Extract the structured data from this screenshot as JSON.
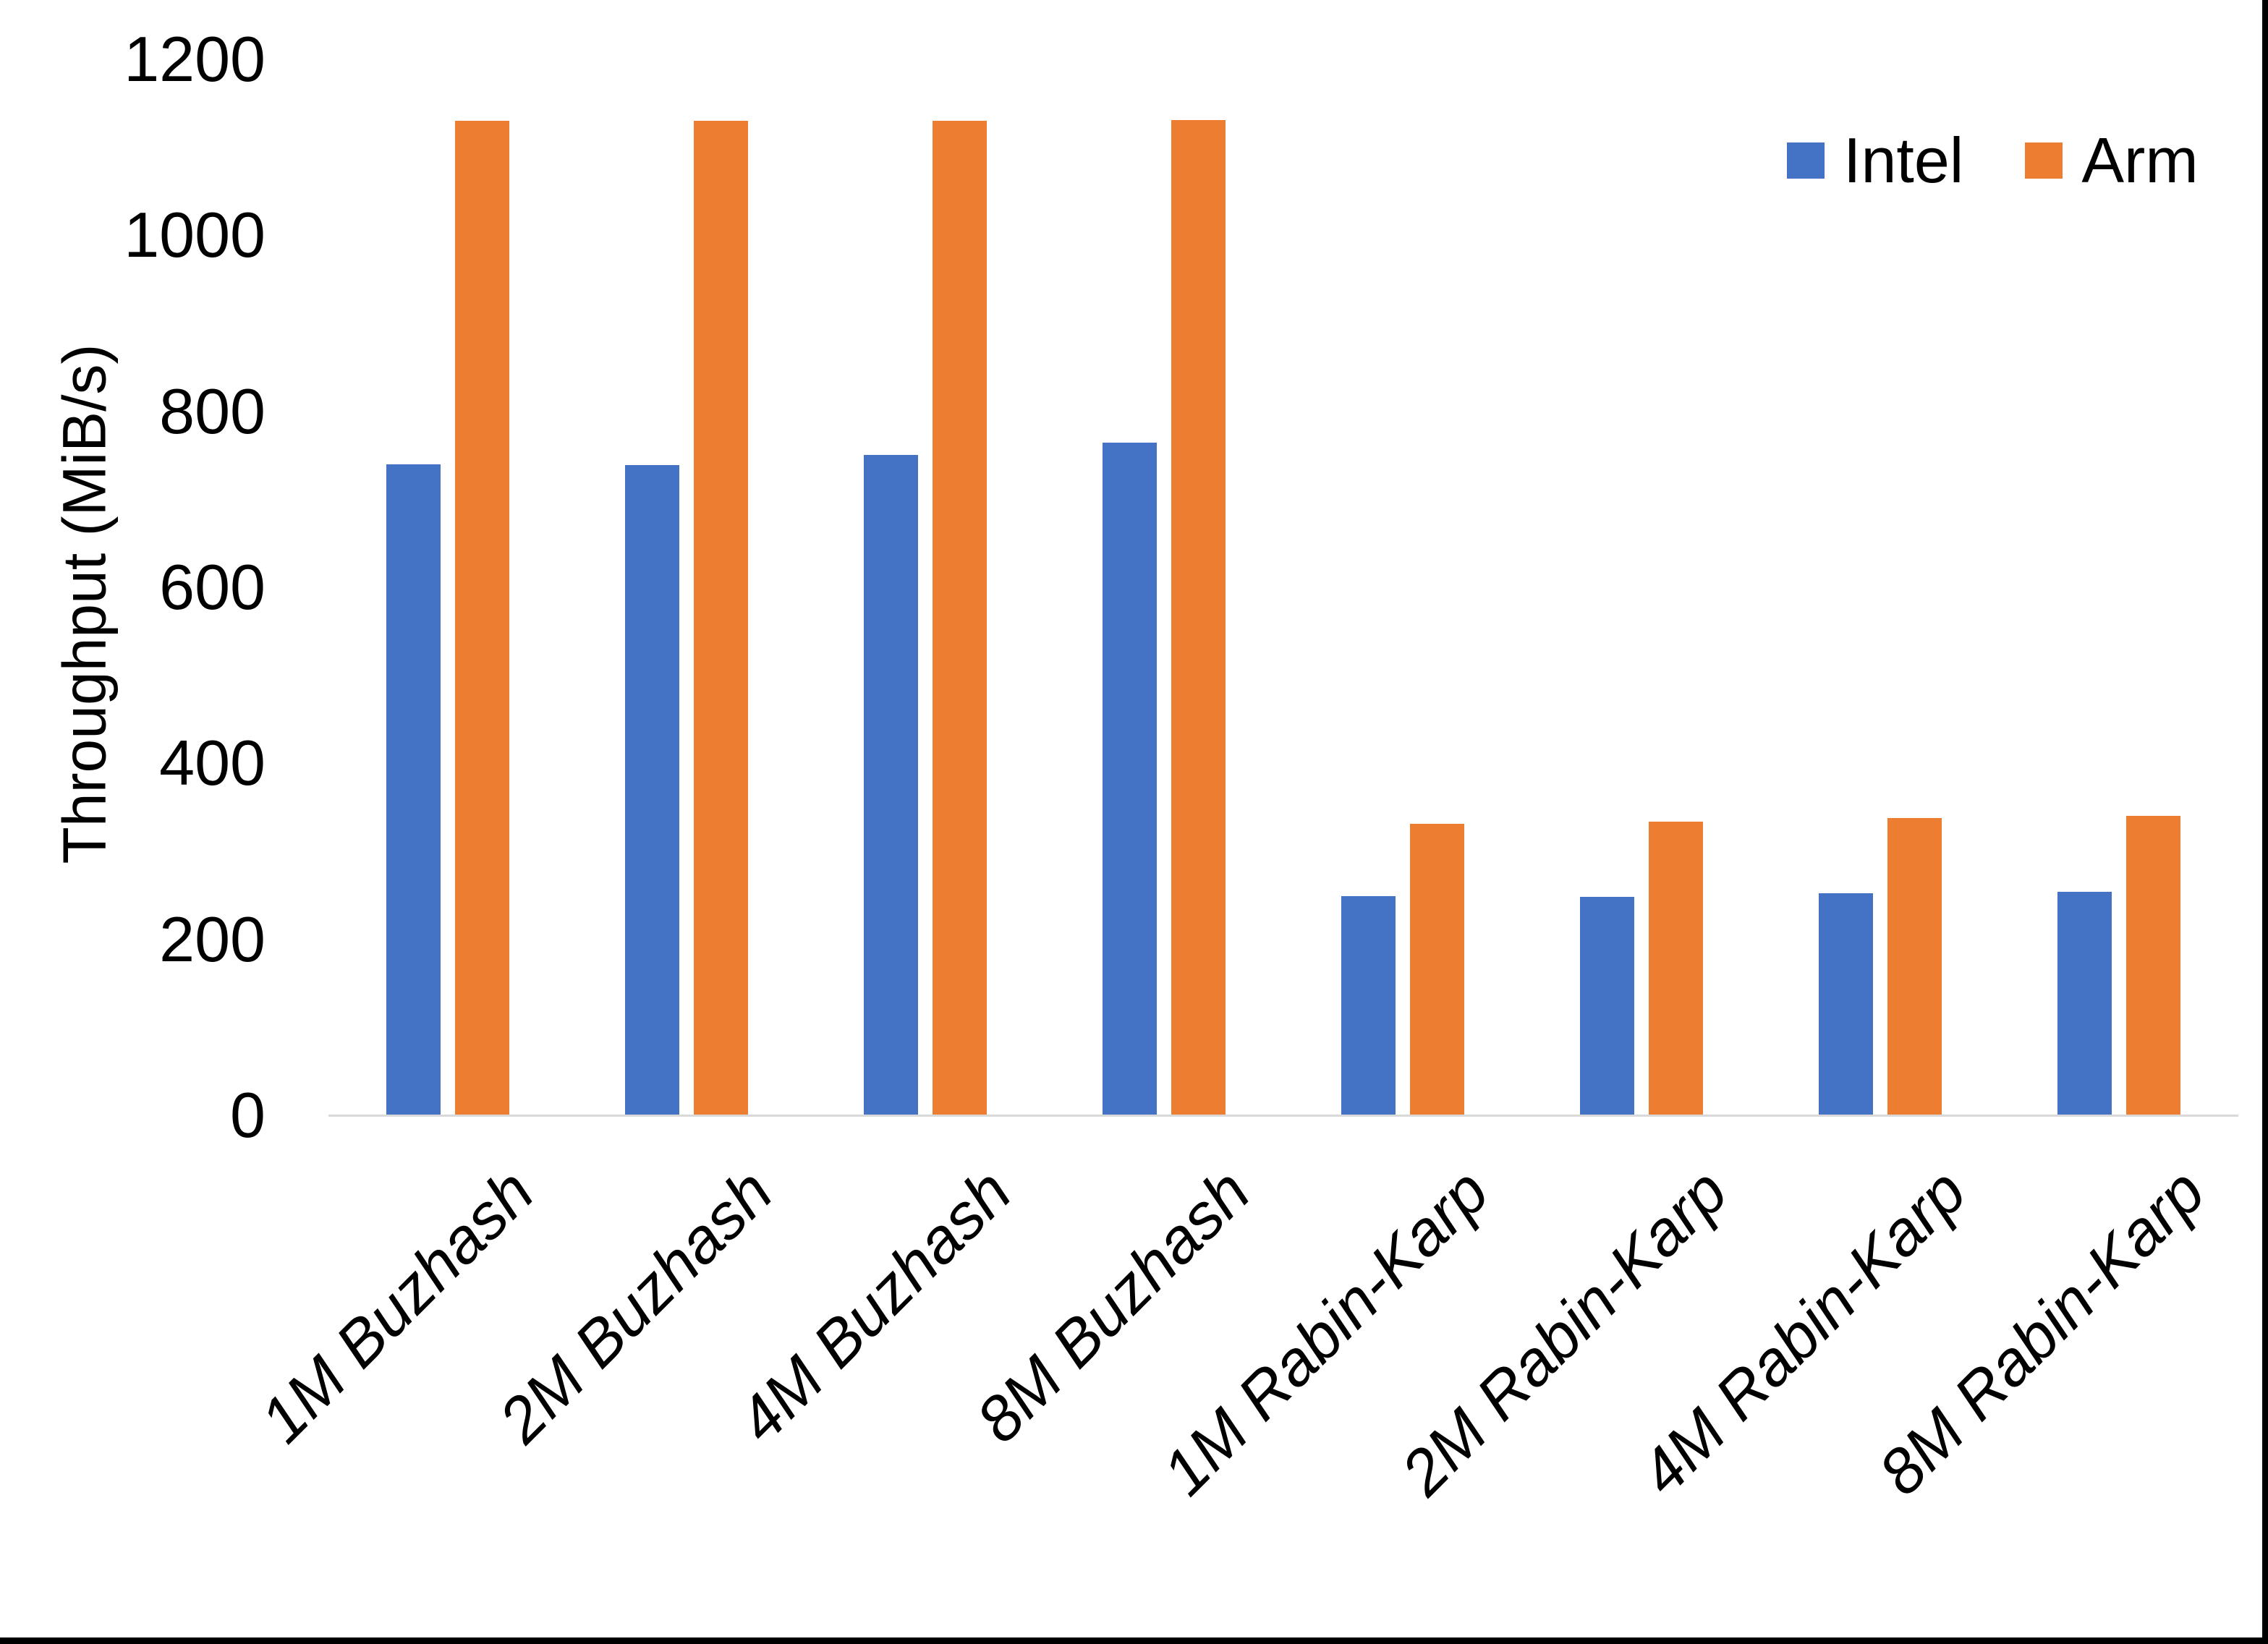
{
  "chart_data": {
    "type": "bar",
    "title": "",
    "ylabel": "Throughput (MiB/s)",
    "ylim": [
      0,
      1200
    ],
    "ytick_step": 200,
    "ytick_labels": [
      "1200",
      "1000",
      "800",
      "600",
      "400",
      "200",
      "0"
    ],
    "grid": false,
    "legend_position": "top-right",
    "categories": [
      "1M Buzhash",
      "2M Buzhash",
      "4M Buzhash",
      "8M Buzhash",
      "1M Rabin-Karp",
      "2M Rabin-Karp",
      "4M Rabin-Karp",
      "8M Rabin-Karp"
    ],
    "series": [
      {
        "name": "Intel",
        "color": "#4472C4",
        "values": [
          740,
          739,
          750,
          764,
          249,
          248,
          252,
          254
        ]
      },
      {
        "name": "Arm",
        "color": "#ED7D31",
        "values": [
          1130,
          1130,
          1130,
          1131,
          331,
          334,
          338,
          340
        ]
      }
    ]
  },
  "colors": {
    "background": "#FFFFFF",
    "axis_line": "#D9D9D9",
    "text": "#000000",
    "screen_edge": "#000000"
  }
}
